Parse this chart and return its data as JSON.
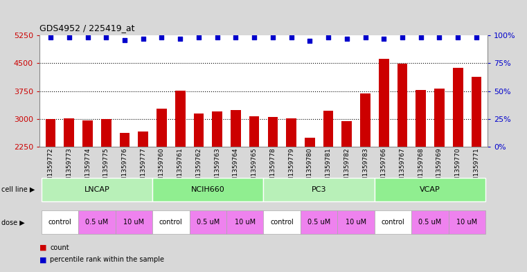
{
  "title": "GDS4952 / 225419_at",
  "samples": [
    "GSM1359772",
    "GSM1359773",
    "GSM1359774",
    "GSM1359775",
    "GSM1359776",
    "GSM1359777",
    "GSM1359760",
    "GSM1359761",
    "GSM1359762",
    "GSM1359763",
    "GSM1359764",
    "GSM1359765",
    "GSM1359778",
    "GSM1359779",
    "GSM1359780",
    "GSM1359781",
    "GSM1359782",
    "GSM1359783",
    "GSM1359766",
    "GSM1359767",
    "GSM1359768",
    "GSM1359769",
    "GSM1359770",
    "GSM1359771"
  ],
  "counts": [
    3000,
    3020,
    2970,
    2990,
    2620,
    2660,
    3280,
    3760,
    3150,
    3200,
    3250,
    3070,
    3060,
    3010,
    2490,
    3230,
    2950,
    3680,
    4620,
    4480,
    3780,
    3820,
    4370,
    4130
  ],
  "percentile_ranks": [
    98,
    98,
    98,
    98,
    96,
    97,
    98,
    97,
    98,
    98,
    98,
    98,
    98,
    98,
    95,
    98,
    97,
    98,
    97,
    98,
    98,
    98,
    98,
    98
  ],
  "ylim_left": [
    2250,
    5250
  ],
  "ylim_right": [
    0,
    100
  ],
  "yticks_left": [
    2250,
    3000,
    3750,
    4500,
    5250
  ],
  "yticks_right": [
    0,
    25,
    50,
    75,
    100
  ],
  "ytick_right_labels": [
    "0%",
    "25%",
    "50%",
    "75%",
    "100%"
  ],
  "bar_color": "#cc0000",
  "dot_color": "#0000cc",
  "cell_line_groups": [
    {
      "label": "LNCAP",
      "start": 0,
      "end": 6,
      "color": "#b8f0b8"
    },
    {
      "label": "NCIH660",
      "start": 6,
      "end": 12,
      "color": "#90ee90"
    },
    {
      "label": "PC3",
      "start": 12,
      "end": 18,
      "color": "#b8f0b8"
    },
    {
      "label": "VCAP",
      "start": 18,
      "end": 24,
      "color": "#90ee90"
    }
  ],
  "dose_groups": [
    {
      "label": "control",
      "start": 0,
      "end": 2,
      "color": "#ffffff"
    },
    {
      "label": "0.5 uM",
      "start": 2,
      "end": 4,
      "color": "#ee82ee"
    },
    {
      "label": "10 uM",
      "start": 4,
      "end": 6,
      "color": "#ee82ee"
    },
    {
      "label": "control",
      "start": 6,
      "end": 8,
      "color": "#ffffff"
    },
    {
      "label": "0.5 uM",
      "start": 8,
      "end": 10,
      "color": "#ee82ee"
    },
    {
      "label": "10 uM",
      "start": 10,
      "end": 12,
      "color": "#ee82ee"
    },
    {
      "label": "control",
      "start": 12,
      "end": 14,
      "color": "#ffffff"
    },
    {
      "label": "0.5 uM",
      "start": 14,
      "end": 16,
      "color": "#ee82ee"
    },
    {
      "label": "10 uM",
      "start": 16,
      "end": 18,
      "color": "#ee82ee"
    },
    {
      "label": "control",
      "start": 18,
      "end": 20,
      "color": "#ffffff"
    },
    {
      "label": "0.5 uM",
      "start": 20,
      "end": 22,
      "color": "#ee82ee"
    },
    {
      "label": "10 uM",
      "start": 22,
      "end": 24,
      "color": "#ee82ee"
    }
  ],
  "bg_color": "#d8d8d8",
  "plot_bg": "#ffffff"
}
